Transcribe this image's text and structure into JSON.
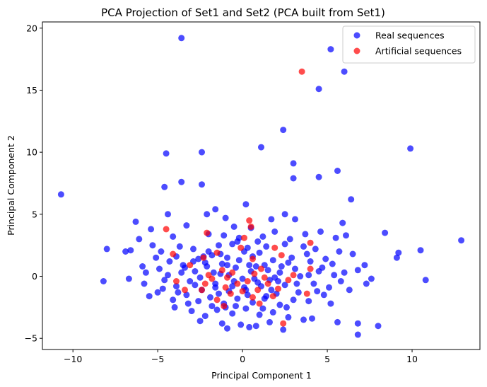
{
  "chart_data": {
    "type": "scatter",
    "title": "PCA Projection of Set1 and Set2 (PCA built from Set1)",
    "xlabel": "Principal Component 1",
    "ylabel": "Principal Component 2",
    "xlim": [
      -11.8,
      14.0
    ],
    "ylim": [
      -5.9,
      20.5
    ],
    "xticks": [
      -10,
      -5,
      0,
      5,
      10
    ],
    "yticks": [
      -5,
      0,
      5,
      10,
      15,
      20
    ],
    "grid": false,
    "legend_position": "top-right",
    "series": [
      {
        "name": "Real sequences",
        "color": "#0000ff",
        "alpha": 0.7,
        "points": [
          [
            -3.6,
            19.2
          ],
          [
            5.2,
            18.3
          ],
          [
            6.0,
            16.5
          ],
          [
            4.5,
            15.1
          ],
          [
            2.4,
            11.8
          ],
          [
            1.1,
            10.4
          ],
          [
            9.9,
            10.3
          ],
          [
            -2.4,
            10.0
          ],
          [
            -4.5,
            9.9
          ],
          [
            3.0,
            9.1
          ],
          [
            5.6,
            8.5
          ],
          [
            4.5,
            8.0
          ],
          [
            3.0,
            7.9
          ],
          [
            -3.6,
            7.6
          ],
          [
            -2.4,
            7.4
          ],
          [
            -4.6,
            7.2
          ],
          [
            6.4,
            6.2
          ],
          [
            -10.7,
            6.6
          ],
          [
            0.2,
            5.8
          ],
          [
            -1.6,
            5.4
          ],
          [
            -4.4,
            5.0
          ],
          [
            -2.1,
            5.0
          ],
          [
            -6.3,
            4.4
          ],
          [
            -1.0,
            4.7
          ],
          [
            1.7,
            4.6
          ],
          [
            2.5,
            5.0
          ],
          [
            3.1,
            4.6
          ],
          [
            5.9,
            4.3
          ],
          [
            -3.3,
            4.1
          ],
          [
            -0.5,
            4.0
          ],
          [
            0.5,
            3.9
          ],
          [
            1.9,
            3.6
          ],
          [
            3.7,
            3.4
          ],
          [
            4.6,
            3.6
          ],
          [
            -5.4,
            3.8
          ],
          [
            -6.1,
            3.0
          ],
          [
            -4.1,
            3.2
          ],
          [
            -2.0,
            3.4
          ],
          [
            -1.1,
            3.3
          ],
          [
            -0.2,
            3.1
          ],
          [
            1.2,
            3.2
          ],
          [
            2.8,
            3.0
          ],
          [
            5.5,
            3.1
          ],
          [
            6.1,
            3.3
          ],
          [
            8.4,
            3.5
          ],
          [
            12.9,
            2.9
          ],
          [
            -8.0,
            2.2
          ],
          [
            -6.9,
            2.0
          ],
          [
            -6.6,
            2.1
          ],
          [
            -5.3,
            2.5
          ],
          [
            -4.8,
            2.0
          ],
          [
            -3.7,
            2.4
          ],
          [
            -2.9,
            2.2
          ],
          [
            -1.4,
            2.5
          ],
          [
            -0.6,
            2.6
          ],
          [
            0.3,
            2.3
          ],
          [
            1.4,
            2.4
          ],
          [
            2.5,
            2.6
          ],
          [
            3.6,
            2.4
          ],
          [
            4.3,
            2.2
          ],
          [
            5.7,
            2.0
          ],
          [
            6.5,
            1.8
          ],
          [
            9.2,
            1.9
          ],
          [
            10.5,
            2.1
          ],
          [
            -5.1,
            1.5
          ],
          [
            -3.9,
            1.6
          ],
          [
            -2.6,
            1.4
          ],
          [
            -1.8,
            1.7
          ],
          [
            -0.9,
            1.5
          ],
          [
            0.6,
            1.6
          ],
          [
            1.8,
            1.3
          ],
          [
            2.9,
            1.5
          ],
          [
            4.0,
            1.2
          ],
          [
            4.9,
            1.4
          ],
          [
            5.3,
            1.0
          ],
          [
            7.2,
            0.9
          ],
          [
            9.1,
            1.5
          ],
          [
            -6.7,
            -0.2
          ],
          [
            -5.7,
            0.3
          ],
          [
            -4.9,
            0.6
          ],
          [
            -4.4,
            0.1
          ],
          [
            -3.5,
            0.9
          ],
          [
            -2.8,
            0.4
          ],
          [
            -2.1,
            0.8
          ],
          [
            -1.3,
            0.2
          ],
          [
            -0.4,
            0.7
          ],
          [
            0.5,
            0.4
          ],
          [
            1.3,
            0.9
          ],
          [
            2.2,
            0.3
          ],
          [
            3.1,
            0.6
          ],
          [
            3.9,
            0.1
          ],
          [
            4.7,
            0.7
          ],
          [
            6.0,
            0.3
          ],
          [
            6.8,
            0.5
          ],
          [
            7.6,
            -0.2
          ],
          [
            10.8,
            -0.3
          ],
          [
            -8.2,
            -0.4
          ],
          [
            -5.8,
            -0.6
          ],
          [
            -4.7,
            -1.0
          ],
          [
            -3.9,
            -0.8
          ],
          [
            -3.1,
            -0.4
          ],
          [
            -2.4,
            -1.1
          ],
          [
            -1.6,
            -0.6
          ],
          [
            -0.8,
            -1.2
          ],
          [
            0.1,
            -0.9
          ],
          [
            0.9,
            -0.5
          ],
          [
            1.7,
            -1.1
          ],
          [
            2.5,
            -0.7
          ],
          [
            3.3,
            -1.3
          ],
          [
            4.2,
            -0.6
          ],
          [
            5.1,
            -0.9
          ],
          [
            5.8,
            -0.4
          ],
          [
            7.3,
            -0.6
          ],
          [
            -5.5,
            -1.6
          ],
          [
            -4.1,
            -1.9
          ],
          [
            -3.3,
            -1.5
          ],
          [
            -2.6,
            -2.0
          ],
          [
            -1.9,
            -1.7
          ],
          [
            -1.1,
            -2.2
          ],
          [
            -0.3,
            -1.8
          ],
          [
            0.6,
            -2.1
          ],
          [
            1.4,
            -1.6
          ],
          [
            2.2,
            -2.3
          ],
          [
            3.0,
            -1.9
          ],
          [
            3.9,
            -2.0
          ],
          [
            4.8,
            -1.5
          ],
          [
            5.2,
            -2.2
          ],
          [
            -4.0,
            -2.5
          ],
          [
            -3.0,
            -2.8
          ],
          [
            -2.2,
            -3.2
          ],
          [
            -1.5,
            -2.7
          ],
          [
            -0.6,
            -3.0
          ],
          [
            0.2,
            -2.6
          ],
          [
            1.0,
            -3.1
          ],
          [
            1.8,
            -2.9
          ],
          [
            2.7,
            -3.3
          ],
          [
            3.6,
            -3.5
          ],
          [
            4.1,
            -3.4
          ],
          [
            -2.5,
            -3.6
          ],
          [
            -1.2,
            -3.8
          ],
          [
            -0.1,
            -3.9
          ],
          [
            0.8,
            -4.0
          ],
          [
            1.6,
            -3.7
          ],
          [
            2.4,
            -4.3
          ],
          [
            -0.9,
            -4.2
          ],
          [
            0.4,
            -4.1
          ],
          [
            5.6,
            -3.7
          ],
          [
            6.8,
            -3.8
          ],
          [
            6.8,
            -4.7
          ],
          [
            8.0,
            -4.0
          ],
          [
            -2.2,
            1.1
          ],
          [
            -1.7,
            0.3
          ],
          [
            -0.9,
            0.9
          ],
          [
            -0.2,
            1.3
          ],
          [
            0.7,
            -0.2
          ],
          [
            1.5,
            0.5
          ],
          [
            -2.8,
            -0.7
          ],
          [
            -1.4,
            -1.4
          ],
          [
            -0.5,
            -0.4
          ],
          [
            0.3,
            -1.5
          ],
          [
            1.1,
            -0.8
          ],
          [
            2.0,
            -1.4
          ],
          [
            -3.6,
            0.3
          ],
          [
            -2.9,
            1.2
          ],
          [
            -1.0,
            -2.5
          ],
          [
            0.0,
            -0.2
          ],
          [
            0.8,
            0.8
          ],
          [
            1.9,
            -0.1
          ],
          [
            2.7,
            1.1
          ],
          [
            -3.2,
            -2.2
          ],
          [
            -1.8,
            -2.4
          ],
          [
            -0.4,
            -2.4
          ],
          [
            1.2,
            -2.6
          ],
          [
            2.6,
            -2.5
          ],
          [
            3.4,
            0.0
          ],
          [
            -4.6,
            -0.3
          ],
          [
            -3.8,
            -1.3
          ],
          [
            4.4,
            -1.2
          ],
          [
            3.8,
            1.8
          ],
          [
            -2.0,
            2.0
          ],
          [
            0.1,
            2.0
          ],
          [
            1.0,
            1.9
          ],
          [
            -1.2,
            1.0
          ],
          [
            -0.6,
            -0.8
          ],
          [
            0.4,
            0.9
          ],
          [
            1.6,
            -0.3
          ],
          [
            2.3,
            0.8
          ],
          [
            -2.5,
            -0.1
          ],
          [
            -1.6,
            -0.9
          ],
          [
            -0.8,
            0.1
          ],
          [
            0.2,
            -1.1
          ],
          [
            1.3,
            -1.8
          ],
          [
            2.1,
            -0.4
          ],
          [
            3.2,
            -0.6
          ],
          [
            -3.4,
            0.7
          ],
          [
            -2.3,
            1.6
          ],
          [
            -1.3,
            1.8
          ],
          [
            0.9,
            2.8
          ],
          [
            -0.3,
            2.8
          ],
          [
            -5.0,
            -1.3
          ],
          [
            -4.3,
            1.2
          ],
          [
            4.5,
            0.4
          ],
          [
            5.4,
            0.1
          ],
          [
            -5.9,
            0.8
          ],
          [
            6.3,
            -1.1
          ]
        ]
      },
      {
        "name": "Artificial sequences",
        "color": "#ff0000",
        "alpha": 0.7,
        "points": [
          [
            3.5,
            16.5
          ],
          [
            0.4,
            4.5
          ],
          [
            -4.5,
            3.8
          ],
          [
            0.5,
            4.0
          ],
          [
            -2.1,
            3.5
          ],
          [
            0.1,
            3.1
          ],
          [
            4.0,
            2.7
          ],
          [
            -0.1,
            2.3
          ],
          [
            1.9,
            2.3
          ],
          [
            -4.1,
            1.8
          ],
          [
            -1.5,
            1.9
          ],
          [
            -2.3,
            1.5
          ],
          [
            0.6,
            1.4
          ],
          [
            2.3,
            1.7
          ],
          [
            -3.1,
            0.9
          ],
          [
            -1.2,
            0.5
          ],
          [
            0.7,
            0.2
          ],
          [
            -2.0,
            0.1
          ],
          [
            -0.6,
            0.3
          ],
          [
            1.3,
            -0.1
          ],
          [
            4.0,
            0.6
          ],
          [
            -3.9,
            -0.4
          ],
          [
            -2.2,
            -0.6
          ],
          [
            -1.0,
            -0.9
          ],
          [
            0.3,
            -0.4
          ],
          [
            1.5,
            -0.6
          ],
          [
            2.7,
            -0.3
          ],
          [
            3.0,
            0.1
          ],
          [
            -2.4,
            -1.1
          ],
          [
            -0.7,
            -1.4
          ],
          [
            0.9,
            -1.1
          ],
          [
            1.8,
            -1.6
          ],
          [
            -3.4,
            -1.1
          ],
          [
            -1.5,
            -1.9
          ],
          [
            0.6,
            -1.7
          ],
          [
            2.1,
            -1.0
          ],
          [
            3.8,
            -1.4
          ],
          [
            -1.1,
            -2.4
          ],
          [
            1.0,
            -2.2
          ],
          [
            2.4,
            -3.8
          ],
          [
            -0.3,
            -0.6
          ],
          [
            0.0,
            -1.2
          ],
          [
            -1.8,
            -0.2
          ],
          [
            1.1,
            0.6
          ],
          [
            -0.9,
            -0.1
          ]
        ]
      }
    ]
  }
}
